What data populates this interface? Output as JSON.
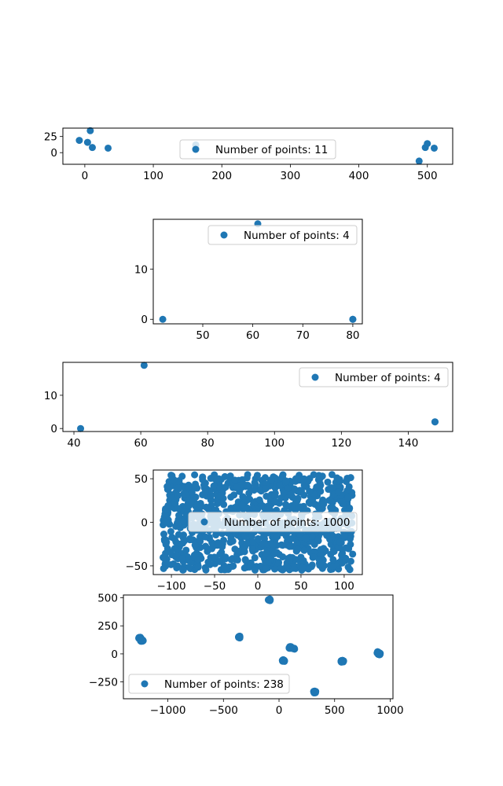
{
  "chart_data": [
    {
      "type": "scatter",
      "color": "#1f77b4",
      "xlim": [
        -32,
        537
      ],
      "ylim": [
        -18,
        38
      ],
      "xticks": [
        0,
        100,
        200,
        300,
        400,
        500
      ],
      "yticks": [
        0,
        25
      ],
      "legend": "Number of points: 11",
      "legend_loc": "center",
      "series": [
        {
          "x": [
            -8,
            4,
            8,
            11,
            34,
            162,
            488,
            497,
            500,
            510,
            162
          ],
          "y": [
            19,
            16,
            34,
            8,
            7,
            12,
            -13,
            8,
            14,
            7,
            7
          ]
        }
      ]
    },
    {
      "type": "scatter",
      "color": "#1f77b4",
      "xlim": [
        40.1,
        81.9
      ],
      "ylim": [
        -0.9,
        19.9
      ],
      "xticks": [
        50,
        60,
        70,
        80
      ],
      "yticks": [
        0,
        10
      ],
      "legend": "Number of points: 4",
      "legend_loc": "upper right",
      "series": [
        {
          "x": [
            42,
            61,
            80,
            80
          ],
          "y": [
            0,
            19,
            0,
            0
          ]
        }
      ]
    },
    {
      "type": "scatter",
      "color": "#1f77b4",
      "xlim": [
        36.7,
        153.3
      ],
      "ylim": [
        -0.9,
        19.9
      ],
      "xticks": [
        40,
        60,
        80,
        100,
        120,
        140
      ],
      "yticks": [
        0,
        10
      ],
      "legend": "Number of points: 4",
      "legend_loc": "upper right",
      "series": [
        {
          "x": [
            42,
            61,
            148,
            148
          ],
          "y": [
            0,
            19,
            2,
            2
          ]
        }
      ]
    },
    {
      "type": "scatter",
      "color": "#1f77b4",
      "xlim": [
        -121,
        121
      ],
      "ylim": [
        -60,
        60
      ],
      "xticks": [
        -100,
        -50,
        0,
        50,
        100
      ],
      "yticks": [
        -50,
        0,
        50
      ],
      "legend": "Number of points: 1000",
      "legend_loc": "right",
      "distribution": {
        "count": 1000,
        "x_range": [
          -110,
          110
        ],
        "y_range": [
          -55,
          55
        ]
      }
    },
    {
      "type": "scatter",
      "color": "#1f77b4",
      "xlim": [
        -1400,
        1025
      ],
      "ylim": [
        -400,
        525
      ],
      "xticks": [
        -1000,
        -500,
        0,
        500,
        1000
      ],
      "yticks": [
        -250,
        0,
        250,
        500
      ],
      "legend": "Number of points: 238",
      "legend_loc": "lower left",
      "clusters": [
        {
          "x": -1250,
          "y": 140,
          "n": 30
        },
        {
          "x": -1235,
          "y": 118,
          "n": 20
        },
        {
          "x": -360,
          "y": 150,
          "n": 15
        },
        {
          "x": -90,
          "y": 480,
          "n": 10
        },
        {
          "x": 40,
          "y": -60,
          "n": 20
        },
        {
          "x": 100,
          "y": 55,
          "n": 30
        },
        {
          "x": 130,
          "y": 45,
          "n": 10
        },
        {
          "x": 320,
          "y": -340,
          "n": 25
        },
        {
          "x": 570,
          "y": -65,
          "n": 45
        },
        {
          "x": 900,
          "y": 0,
          "n": 23
        },
        {
          "x": 890,
          "y": 10,
          "n": 10
        }
      ]
    }
  ]
}
